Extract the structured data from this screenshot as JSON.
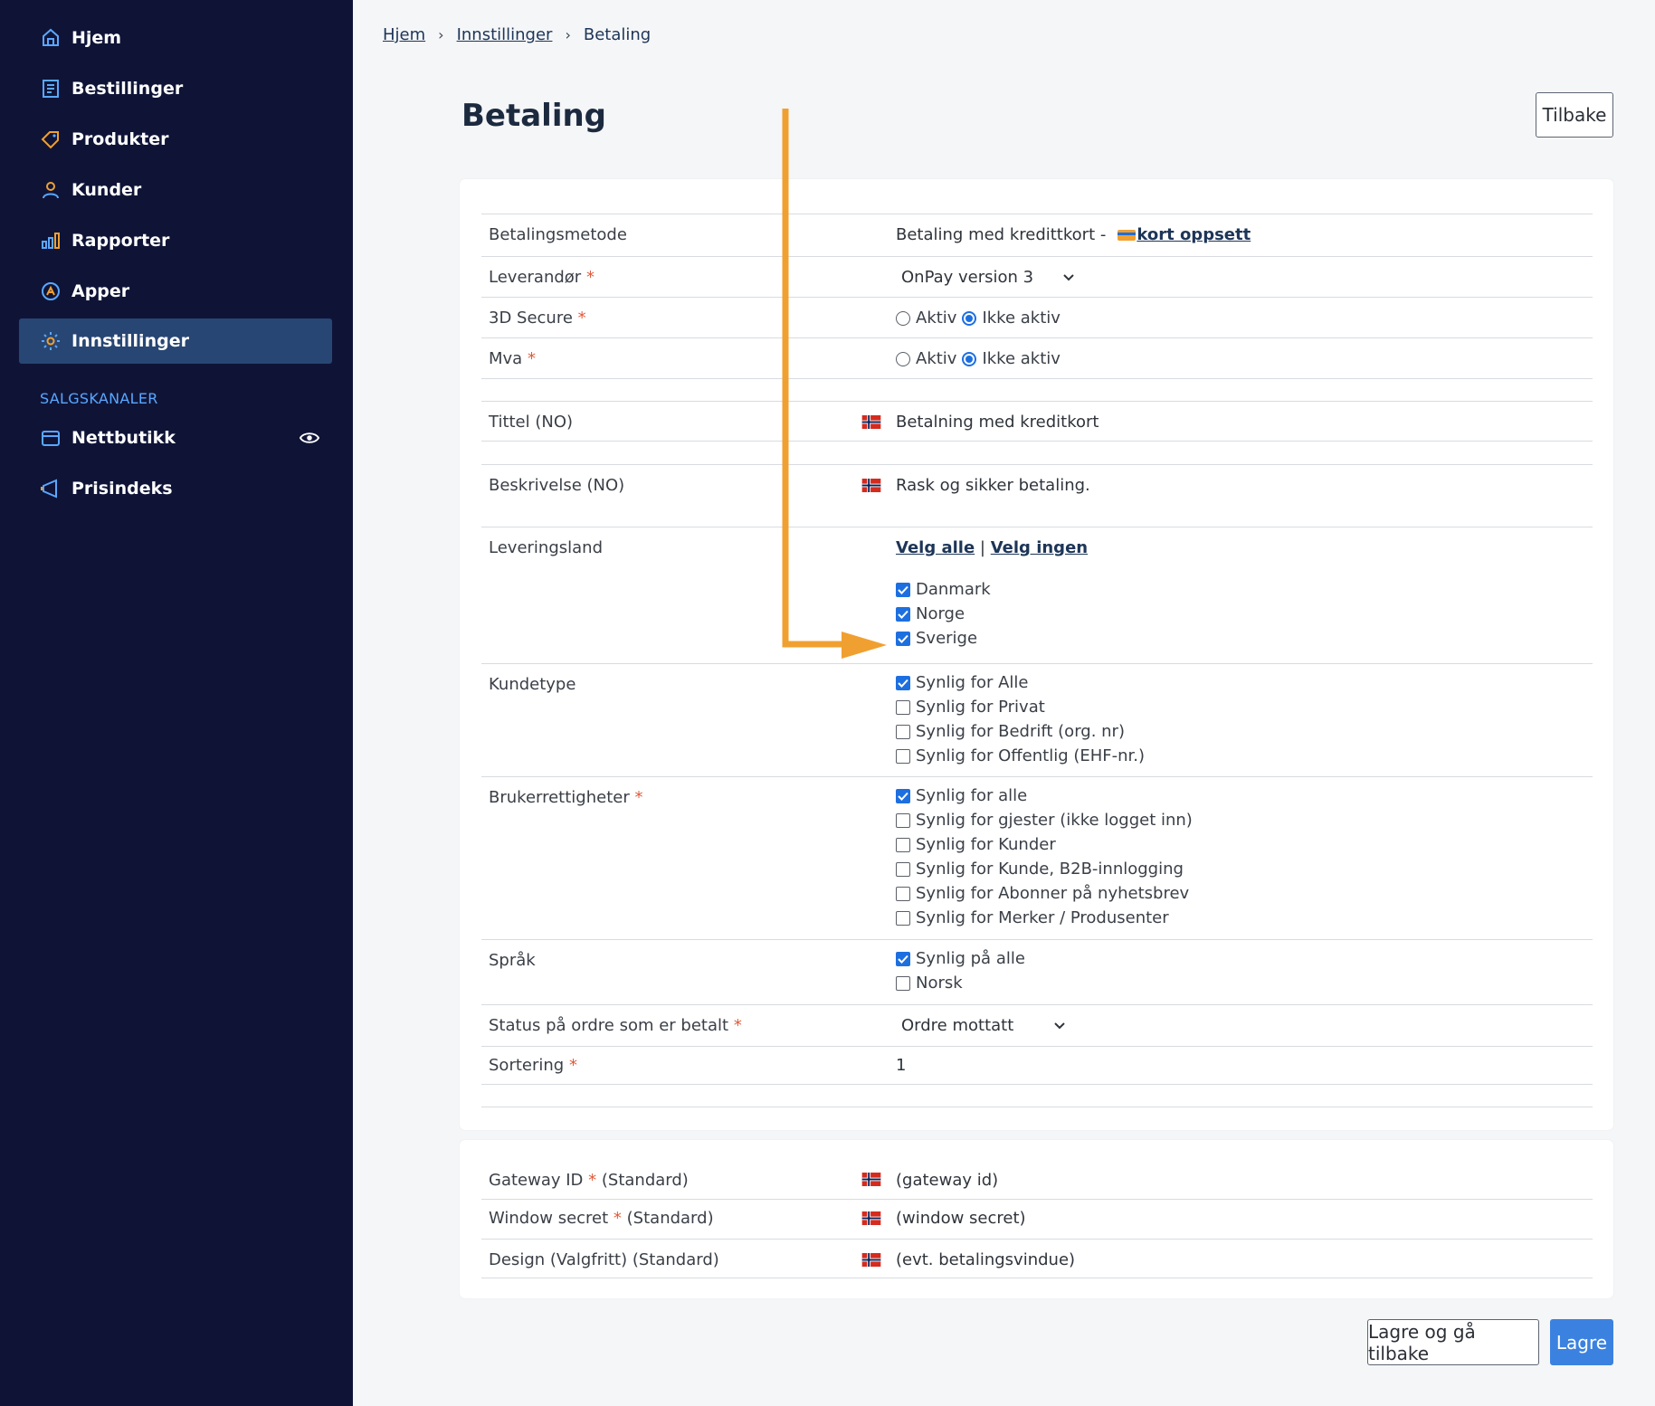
{
  "sidebar": {
    "items": [
      {
        "label": "Hjem",
        "icon": "home-icon"
      },
      {
        "label": "Bestillinger",
        "icon": "orders-icon"
      },
      {
        "label": "Produkter",
        "icon": "tag-icon"
      },
      {
        "label": "Kunder",
        "icon": "user-icon"
      },
      {
        "label": "Rapporter",
        "icon": "chart-icon"
      },
      {
        "label": "Apper",
        "icon": "apps-icon"
      },
      {
        "label": "Innstillinger",
        "icon": "gear-icon",
        "active": true
      }
    ],
    "section_label": "SALGSKANALER",
    "channels": [
      {
        "label": "Nettbutikk",
        "icon": "store-icon"
      },
      {
        "label": "Prisindeks",
        "icon": "megaphone-icon"
      }
    ]
  },
  "breadcrumb": {
    "home": "Hjem",
    "settings": "Innstillinger",
    "current": "Betaling"
  },
  "page_title": "Betaling",
  "back_button": "Tilbake",
  "form": {
    "payment_method": {
      "label": "Betalingsmetode",
      "value": "Betaling med kredittkort -",
      "link": " kort oppsett"
    },
    "provider": {
      "label": "Leverandør",
      "value": "OnPay version 3"
    },
    "secure3d": {
      "label": "3D Secure",
      "opt_active": "Aktiv",
      "opt_inactive": "Ikke aktiv"
    },
    "vat": {
      "label": "Mva",
      "opt_active": "Aktiv",
      "opt_inactive": "Ikke aktiv"
    },
    "title": {
      "label": "Tittel (NO)",
      "value": "Betalning med kreditkort"
    },
    "description": {
      "label": "Beskrivelse (NO)",
      "value": "Rask og sikker betaling."
    },
    "delivery_country": {
      "label": "Leveringsland",
      "select_all": "Velg alle",
      "divider": "|",
      "select_none": "Velg ingen",
      "options": [
        {
          "label": "Danmark",
          "checked": true
        },
        {
          "label": "Norge",
          "checked": true
        },
        {
          "label": "Sverige",
          "checked": true
        }
      ]
    },
    "customer_type": {
      "label": "Kundetype",
      "options": [
        {
          "label": "Synlig for Alle",
          "checked": true
        },
        {
          "label": "Synlig for Privat",
          "checked": false
        },
        {
          "label": "Synlig for Bedrift (org. nr)",
          "checked": false
        },
        {
          "label": "Synlig for Offentlig (EHF-nr.)",
          "checked": false
        }
      ]
    },
    "user_rights": {
      "label": "Brukerrettigheter",
      "options": [
        {
          "label": "Synlig for alle",
          "checked": true
        },
        {
          "label": "Synlig for gjester (ikke logget inn)",
          "checked": false
        },
        {
          "label": "Synlig for Kunder",
          "checked": false
        },
        {
          "label": "Synlig for Kunde, B2B-innlogging",
          "checked": false
        },
        {
          "label": "Synlig for Abonner på nyhetsbrev",
          "checked": false
        },
        {
          "label": "Synlig for Merker / Produsenter",
          "checked": false
        }
      ]
    },
    "language": {
      "label": "Språk",
      "options": [
        {
          "label": "Synlig på alle",
          "checked": true
        },
        {
          "label": "Norsk",
          "checked": false
        }
      ]
    },
    "paid_status": {
      "label": "Status på ordre som er betalt",
      "value": "Ordre mottatt"
    },
    "sorting": {
      "label": "Sortering",
      "value": "1"
    }
  },
  "gateway": {
    "gateway_id": {
      "label_main": "Gateway ID",
      "label_suffix": "(Standard)",
      "value": "(gateway id)"
    },
    "window_secret": {
      "label_main": "Window secret",
      "label_suffix": "(Standard)",
      "value": "(window secret)"
    },
    "design": {
      "label": "Design (Valgfritt) (Standard)",
      "value": "(evt. betalingsvindue)"
    }
  },
  "actions": {
    "save_back": "Lagre og gå tilbake",
    "save": "Lagre"
  },
  "colors": {
    "sidebar": "#0f1437",
    "active": "#284673",
    "accent": "#3b82e0",
    "annotation": "#f0a030",
    "required": "#e05a3a"
  }
}
